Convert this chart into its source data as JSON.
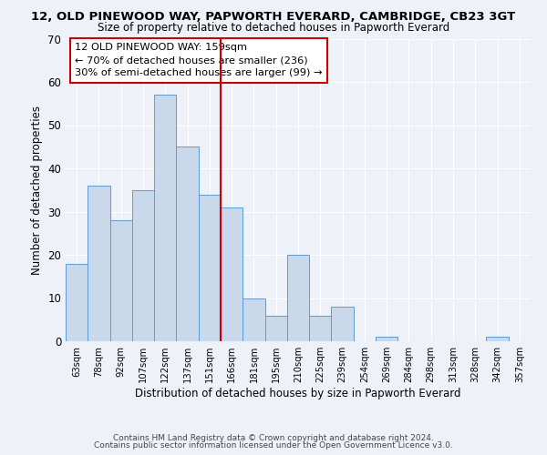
{
  "title": "12, OLD PINEWOOD WAY, PAPWORTH EVERARD, CAMBRIDGE, CB23 3GT",
  "subtitle": "Size of property relative to detached houses in Papworth Everard",
  "xlabel": "Distribution of detached houses by size in Papworth Everard",
  "ylabel": "Number of detached properties",
  "bar_labels": [
    "63sqm",
    "78sqm",
    "92sqm",
    "107sqm",
    "122sqm",
    "137sqm",
    "151sqm",
    "166sqm",
    "181sqm",
    "195sqm",
    "210sqm",
    "225sqm",
    "239sqm",
    "254sqm",
    "269sqm",
    "284sqm",
    "298sqm",
    "313sqm",
    "328sqm",
    "342sqm",
    "357sqm"
  ],
  "bar_values": [
    18,
    36,
    28,
    35,
    57,
    45,
    34,
    31,
    10,
    6,
    20,
    6,
    8,
    0,
    1,
    0,
    0,
    0,
    0,
    1,
    0
  ],
  "bar_color": "#c9d9eb",
  "bar_edgecolor": "#5b9bd5",
  "vline_color": "#cc0000",
  "annotation_title": "12 OLD PINEWOOD WAY: 159sqm",
  "annotation_line1": "← 70% of detached houses are smaller (236)",
  "annotation_line2": "30% of semi-detached houses are larger (99) →",
  "annotation_box_edgecolor": "#cc0000",
  "ylim": [
    0,
    70
  ],
  "yticks": [
    0,
    10,
    20,
    30,
    40,
    50,
    60,
    70
  ],
  "footer1": "Contains HM Land Registry data © Crown copyright and database right 2024.",
  "footer2": "Contains public sector information licensed under the Open Government Licence v3.0.",
  "background_color": "#eef2f8",
  "plot_background": "#eef2f8",
  "grid_color": "white"
}
